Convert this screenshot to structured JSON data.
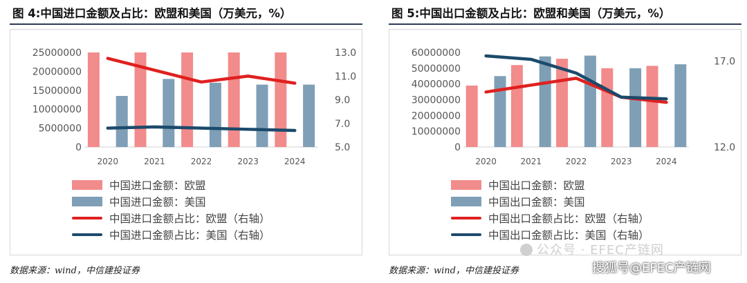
{
  "panels": [
    {
      "title": "图 4:中国进口金额及占比：欧盟和美国（万美元，%）",
      "source": "数据来源：wind，中信建投证券",
      "legend": [
        {
          "label": "中国进口金额：欧盟",
          "kind": "bar",
          "color": "#f28b8b"
        },
        {
          "label": "中国进口金额：美国",
          "kind": "bar",
          "color": "#7f9fb6"
        },
        {
          "label": "中国进口金额占比：欧盟（右轴）",
          "kind": "line",
          "color": "#e02020"
        },
        {
          "label": "中国进口金额占比：美国（右轴）",
          "kind": "line",
          "color": "#1b4a6b"
        }
      ],
      "chart_data": {
        "type": "bar",
        "categories": [
          "2020",
          "2021",
          "2022",
          "2023",
          "2024"
        ],
        "ylim": [
          0,
          25000000
        ],
        "yticks": [
          "0",
          "5000000",
          "10000000",
          "15000000",
          "20000000",
          "25000000"
        ],
        "y2lim": [
          5.0,
          13.0
        ],
        "y2ticks": [
          "5.0",
          "7.0",
          "9.0",
          "11.0",
          "13.0"
        ],
        "series": [
          {
            "name": "中国进口金额：欧盟",
            "type": "bar",
            "axis": "left",
            "color": "#f28b8b",
            "values": [
              25000000,
              25000000,
              25000000,
              25000000,
              25000000
            ]
          },
          {
            "name": "中国进口金额：美国",
            "type": "bar",
            "axis": "left",
            "color": "#7f9fb6",
            "values": [
              13500000,
              18000000,
              17000000,
              16500000,
              16500000
            ]
          },
          {
            "name": "中国进口金额占比：欧盟（右轴）",
            "type": "line",
            "axis": "right",
            "color": "#e02020",
            "values": [
              12.5,
              11.5,
              10.5,
              11.0,
              10.4
            ]
          },
          {
            "name": "中国进口金额占比：美国（右轴）",
            "type": "line",
            "axis": "right",
            "color": "#1b4a6b",
            "values": [
              6.6,
              6.7,
              6.6,
              6.5,
              6.4
            ]
          }
        ]
      }
    },
    {
      "title": "图 5:中国出口金额及占比：欧盟和美国（万美元，%）",
      "source": "数据来源：wind，中信建投证券",
      "legend": [
        {
          "label": "中国出口金额：欧盟",
          "kind": "bar",
          "color": "#f28b8b"
        },
        {
          "label": "中国出口金额：美国",
          "kind": "bar",
          "color": "#7f9fb6"
        },
        {
          "label": "中国出口金额占比：欧盟（右轴）",
          "kind": "line",
          "color": "#e02020"
        },
        {
          "label": "中国出口金额占比：美国（右轴）",
          "kind": "line",
          "color": "#1b4a6b"
        }
      ],
      "chart_data": {
        "type": "bar",
        "categories": [
          "2020",
          "2021",
          "2022",
          "2023",
          "2024"
        ],
        "ylim": [
          0,
          60000000
        ],
        "yticks": [
          "0",
          "10000000",
          "20000000",
          "30000000",
          "40000000",
          "50000000",
          "60000000"
        ],
        "y2lim": [
          12.0,
          17.5
        ],
        "y2ticks": [
          "12.0",
          "17.0"
        ],
        "series": [
          {
            "name": "中国出口金额：欧盟",
            "type": "bar",
            "axis": "left",
            "color": "#f28b8b",
            "values": [
              39000000,
              52000000,
              56000000,
              50000000,
              51500000
            ]
          },
          {
            "name": "中国出口金额：美国",
            "type": "bar",
            "axis": "left",
            "color": "#7f9fb6",
            "values": [
              45000000,
              57500000,
              58000000,
              50000000,
              52500000
            ]
          },
          {
            "name": "中国出口金额占比：欧盟（右轴）",
            "type": "line",
            "axis": "right",
            "color": "#e02020",
            "values": [
              15.2,
              15.6,
              16.0,
              14.9,
              14.6
            ]
          },
          {
            "name": "中国出口金额占比：美国（右轴）",
            "type": "line",
            "axis": "right",
            "color": "#1b4a6b",
            "values": [
              17.3,
              17.1,
              16.3,
              14.9,
              14.8
            ]
          }
        ]
      }
    }
  ],
  "watermark": {
    "line1": "公众号 · EFEC产链网",
    "line2": "搜狐号@EFEC产链网"
  }
}
